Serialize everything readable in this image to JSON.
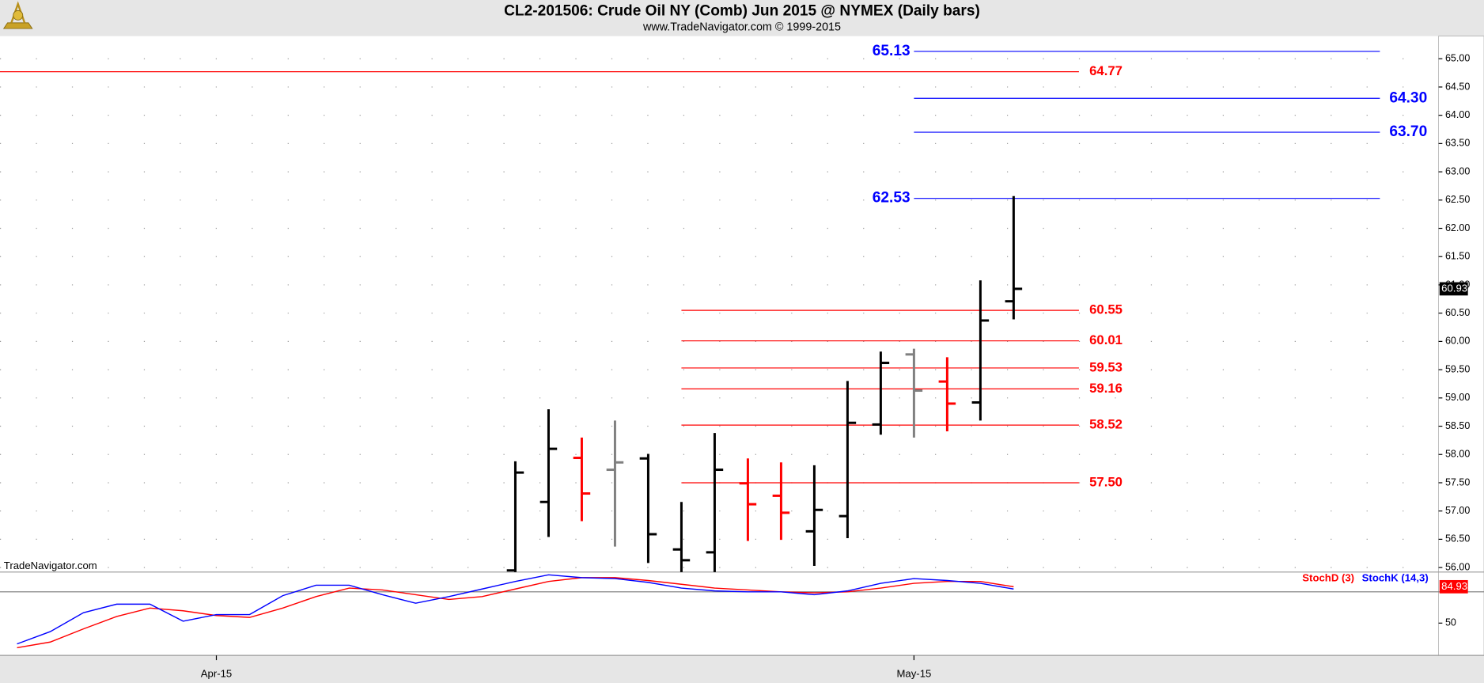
{
  "chart_data": [
    {
      "type": "ohlc",
      "title": "CL2-201506:  Crude Oil NY (Comb) Jun 2015 @ NYMEX  (Daily bars)",
      "subtitle": "www.TradeNavigator.com © 1999-2015",
      "watermark": "TradeNavigator.com",
      "open": [
        null,
        null,
        null,
        null,
        null,
        null,
        null,
        null,
        null,
        null,
        null,
        null,
        null,
        null,
        null,
        55.95,
        57.16,
        57.94,
        57.73,
        57.93,
        56.32,
        56.27,
        57.49,
        57.27,
        56.64,
        56.91,
        58.53,
        59.77,
        59.29,
        58.92,
        60.71
      ],
      "high": [
        null,
        null,
        null,
        null,
        null,
        null,
        null,
        null,
        null,
        null,
        null,
        null,
        null,
        null,
        null,
        57.88,
        58.8,
        58.3,
        58.6,
        58.01,
        57.16,
        58.38,
        57.93,
        57.86,
        57.81,
        59.3,
        59.82,
        59.87,
        59.72,
        61.08,
        62.57
      ],
      "low": [
        null,
        null,
        null,
        null,
        null,
        null,
        null,
        null,
        null,
        null,
        null,
        null,
        null,
        null,
        null,
        55.8,
        56.54,
        56.82,
        56.37,
        56.08,
        55.9,
        55.85,
        56.47,
        56.49,
        56.03,
        56.52,
        58.35,
        58.3,
        58.41,
        58.6,
        60.39
      ],
      "close": [
        null,
        null,
        null,
        null,
        null,
        null,
        null,
        null,
        null,
        null,
        null,
        null,
        null,
        null,
        null,
        57.68,
        58.1,
        57.31,
        57.86,
        56.59,
        56.13,
        57.73,
        57.12,
        56.97,
        57.02,
        58.56,
        59.62,
        59.13,
        58.9,
        60.37,
        60.93
      ],
      "bar_colors": [
        null,
        null,
        null,
        null,
        null,
        null,
        null,
        null,
        null,
        null,
        null,
        null,
        null,
        null,
        null,
        "#000000",
        "#000000",
        "#ff0000",
        "#808080",
        "#000000",
        "#000000",
        "#000000",
        "#ff0000",
        "#ff0000",
        "#000000",
        "#000000",
        "#000000",
        "#808080",
        "#ff0000",
        "#000000",
        "#000000"
      ],
      "levels": [
        {
          "value": 65.13,
          "label": "65.13",
          "color": "#0000ff"
        },
        {
          "value": 64.77,
          "label": "64.77",
          "color": "#ff0000"
        },
        {
          "value": 64.3,
          "label": "64.30",
          "color": "#0000ff"
        },
        {
          "value": 63.7,
          "label": "63.70",
          "color": "#0000ff"
        },
        {
          "value": 62.53,
          "label": "62.53",
          "color": "#0000ff"
        },
        {
          "value": 60.55,
          "label": "60.55",
          "color": "#ff0000"
        },
        {
          "value": 60.01,
          "label": "60.01",
          "color": "#ff0000"
        },
        {
          "value": 59.53,
          "label": "59.53",
          "color": "#ff0000"
        },
        {
          "value": 59.16,
          "label": "59.16",
          "color": "#ff0000"
        },
        {
          "value": 58.52,
          "label": "58.52",
          "color": "#ff0000"
        },
        {
          "value": 57.5,
          "label": "57.50",
          "color": "#ff0000"
        }
      ],
      "ylim": [
        55.92,
        65.4
      ],
      "yticks": [
        {
          "value": 56,
          "label": "56.00"
        },
        {
          "value": 56.5,
          "label": "56.50"
        },
        {
          "value": 57,
          "label": "57.00"
        },
        {
          "value": 57.5,
          "label": "57.50"
        },
        {
          "value": 58,
          "label": "58.00"
        },
        {
          "value": 58.5,
          "label": "58.50"
        },
        {
          "value": 59,
          "label": "59.00"
        },
        {
          "value": 59.5,
          "label": "59.50"
        },
        {
          "value": 60,
          "label": "60.00"
        },
        {
          "value": 60.5,
          "label": "60.50"
        },
        {
          "value": 61,
          "label": "61.00"
        },
        {
          "value": 61.5,
          "label": "61.50"
        },
        {
          "value": 62,
          "label": "62.00"
        },
        {
          "value": 62.5,
          "label": "62.50"
        },
        {
          "value": 63,
          "label": "63.00"
        },
        {
          "value": 63.5,
          "label": "63.50"
        },
        {
          "value": 64,
          "label": "64.00"
        },
        {
          "value": 64.5,
          "label": "64.50"
        },
        {
          "value": 65,
          "label": "65.00"
        }
      ],
      "grid": true
    },
    {
      "type": "line",
      "categories": [
        null,
        null,
        null,
        null,
        null,
        null,
        "Apr-15",
        null,
        null,
        null,
        null,
        null,
        null,
        null,
        null,
        null,
        null,
        null,
        null,
        null,
        null,
        null,
        null,
        null,
        null,
        null,
        null,
        "May-15",
        null,
        null,
        null
      ],
      "series": [
        {
          "name": "StochD (3)",
          "color": "#ff0000",
          "values": [
            26.4,
            31.8,
            44.5,
            56.4,
            64.5,
            61.8,
            57.3,
            55.5,
            64.5,
            75.5,
            83.6,
            81.8,
            77.3,
            72.7,
            75.5,
            82.7,
            90.0,
            93.6,
            93.6,
            90.9,
            87.3,
            83.6,
            81.8,
            80.0,
            79.1,
            80.0,
            83.6,
            88.2,
            90.0,
            90.0,
            84.93
          ]
        },
        {
          "name": "StochK (14,3)",
          "color": "#0000ff",
          "values": [
            30.0,
            41.8,
            60.0,
            68.2,
            68.2,
            51.8,
            58.2,
            58.2,
            76.4,
            86.4,
            86.4,
            77.3,
            69.1,
            75.5,
            82.7,
            90.0,
            96.4,
            93.6,
            92.7,
            89.1,
            83.6,
            80.9,
            80.0,
            80.0,
            77.3,
            80.9,
            88.2,
            92.7,
            90.9,
            88.2,
            82.7
          ]
        }
      ],
      "reference_line": 80,
      "ylim": [
        19,
        99
      ],
      "yticks": [
        50
      ]
    }
  ]
}
